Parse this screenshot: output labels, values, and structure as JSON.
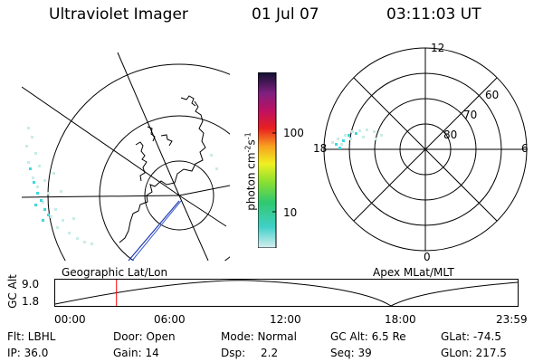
{
  "header": {
    "title": "Ultraviolet Imager",
    "date": "01 Jul 07",
    "time": "03:11:03 UT"
  },
  "left_panel": {
    "label": "Geographic Lat/Lon"
  },
  "right_panel": {
    "label": "Apex MLat/MLT",
    "lat_labels": [
      "60",
      "70",
      "80"
    ],
    "mlt_labels": {
      "top": "12",
      "bottom": "0",
      "left": "18",
      "right": "6"
    }
  },
  "colorbar": {
    "unit_label": "photon cm",
    "unit_sup1": "-2",
    "unit_s": "s",
    "unit_sup2": "-1",
    "ticks": [
      "100",
      "10"
    ]
  },
  "altitude_plot": {
    "ylabel": "GC Alt",
    "ymax": "9.0",
    "ymin": "1.8",
    "xticks": [
      "00:00",
      "06:00",
      "12:00",
      "18:00",
      "23:59"
    ],
    "marker_time_hours": 3.18
  },
  "info": {
    "row1": {
      "flt": "Flt: LBHL",
      "door": "Door: Open",
      "mode": "Mode: Normal",
      "gcalt": "GC Alt: 6.5 Re",
      "glat": "GLat: -74.5"
    },
    "row2": {
      "ip": "IP: 36.0",
      "gain": "Gain: 14",
      "dsp_label": "Dsp:",
      "dsp_value": "2.2",
      "seq": "Seq: 39",
      "glon": "GLon: 217.5"
    }
  },
  "colors": {
    "aurora_cyan": "#3fd8dc",
    "aurora_light": "#c8ece6",
    "marker": "#ff0000",
    "orbit_line": "#1f3cb0"
  }
}
